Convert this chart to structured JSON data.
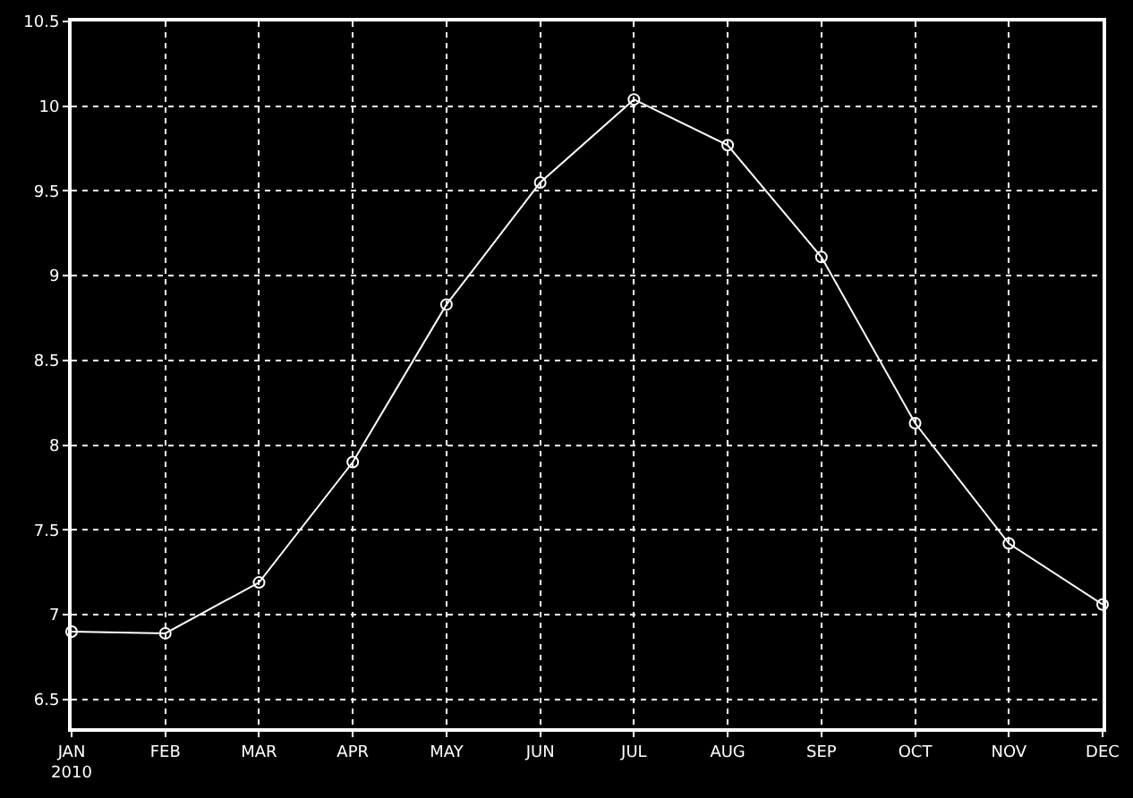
{
  "chart_data": {
    "type": "line",
    "categories": [
      "JAN\n2010",
      "FEB",
      "MAR",
      "APR",
      "MAY",
      "JUN",
      "JUL",
      "AUG",
      "SEP",
      "OCT",
      "NOV",
      "DEC"
    ],
    "series": [
      {
        "color": "#ffffff",
        "values": [
          6.9,
          6.89,
          7.19,
          7.9,
          8.83,
          9.55,
          10.04,
          9.77,
          9.11,
          8.13,
          7.42,
          7.06
        ]
      }
    ],
    "ylim": [
      6.33,
      10.5
    ],
    "yticks": [
      6.5,
      7,
      7.5,
      8,
      8.5,
      9,
      9.5,
      10,
      10.5
    ],
    "grid": true,
    "marker": "circle",
    "line_style": "solid",
    "legend": false
  }
}
